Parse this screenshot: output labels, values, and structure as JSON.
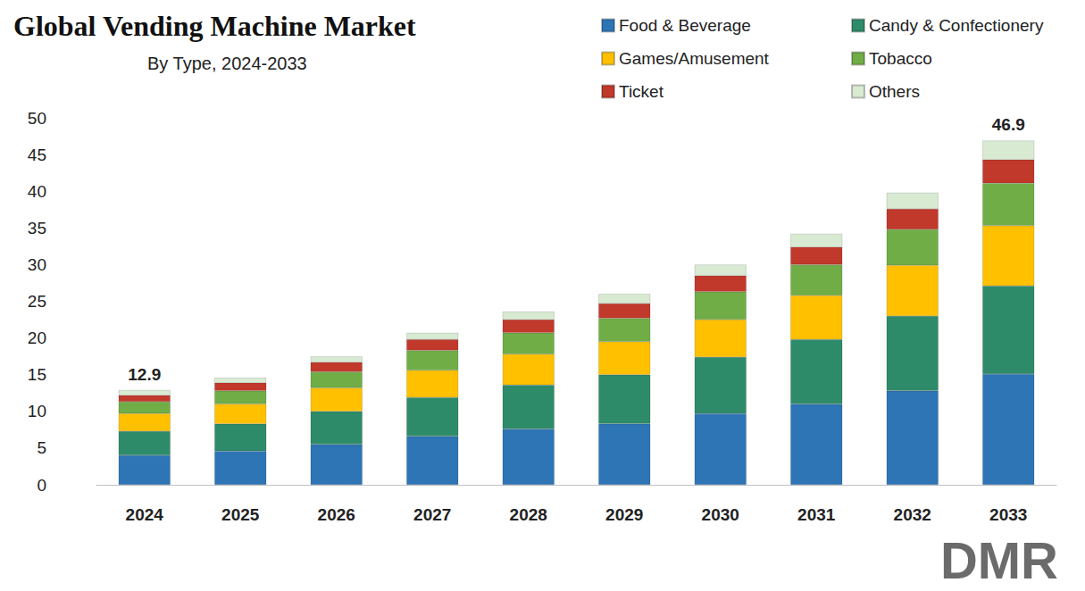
{
  "chart_data": {
    "type": "bar",
    "title": "Global Vending Machine Market",
    "subtitle": "By Type, 2024-2033",
    "categories": [
      "2024",
      "2025",
      "2026",
      "2027",
      "2028",
      "2029",
      "2030",
      "2031",
      "2032",
      "2033"
    ],
    "series": [
      {
        "name": "Food & Beverage",
        "color": "#2e75b6",
        "values": [
          4.0,
          4.6,
          5.5,
          6.6,
          7.6,
          8.3,
          9.7,
          11.0,
          12.8,
          15.1
        ]
      },
      {
        "name": "Candy & Confectionery",
        "color": "#2e8b6a",
        "values": [
          3.3,
          3.7,
          4.5,
          5.3,
          6.0,
          6.7,
          7.7,
          8.8,
          10.2,
          12.0
        ]
      },
      {
        "name": "Games/Amusement",
        "color": "#ffc000",
        "values": [
          2.4,
          2.7,
          3.2,
          3.7,
          4.2,
          4.5,
          5.1,
          6.0,
          6.9,
          8.2
        ]
      },
      {
        "name": "Tobacco",
        "color": "#70ad47",
        "values": [
          1.6,
          1.8,
          2.2,
          2.7,
          2.9,
          3.2,
          3.8,
          4.2,
          4.9,
          5.8
        ]
      },
      {
        "name": "Ticket",
        "color": "#c0392b",
        "values": [
          0.9,
          1.1,
          1.3,
          1.5,
          1.8,
          2.0,
          2.2,
          2.4,
          2.8,
          3.2
        ]
      },
      {
        "name": "Others",
        "color": "#d9ead3",
        "values": [
          0.7,
          0.7,
          0.8,
          0.9,
          1.1,
          1.3,
          1.5,
          1.8,
          2.2,
          2.6
        ]
      }
    ],
    "annotations": [
      {
        "text": "12.9",
        "category": "2024",
        "value": 12.9
      },
      {
        "text": "46.9",
        "category": "2033",
        "value": 46.9
      }
    ],
    "logo": "DMR",
    "ylim": [
      0,
      50
    ],
    "yticks": [
      0,
      5,
      10,
      15,
      20,
      25,
      30,
      35,
      40,
      45,
      50
    ],
    "stacked": true,
    "grid": false,
    "legend": "top-right"
  }
}
